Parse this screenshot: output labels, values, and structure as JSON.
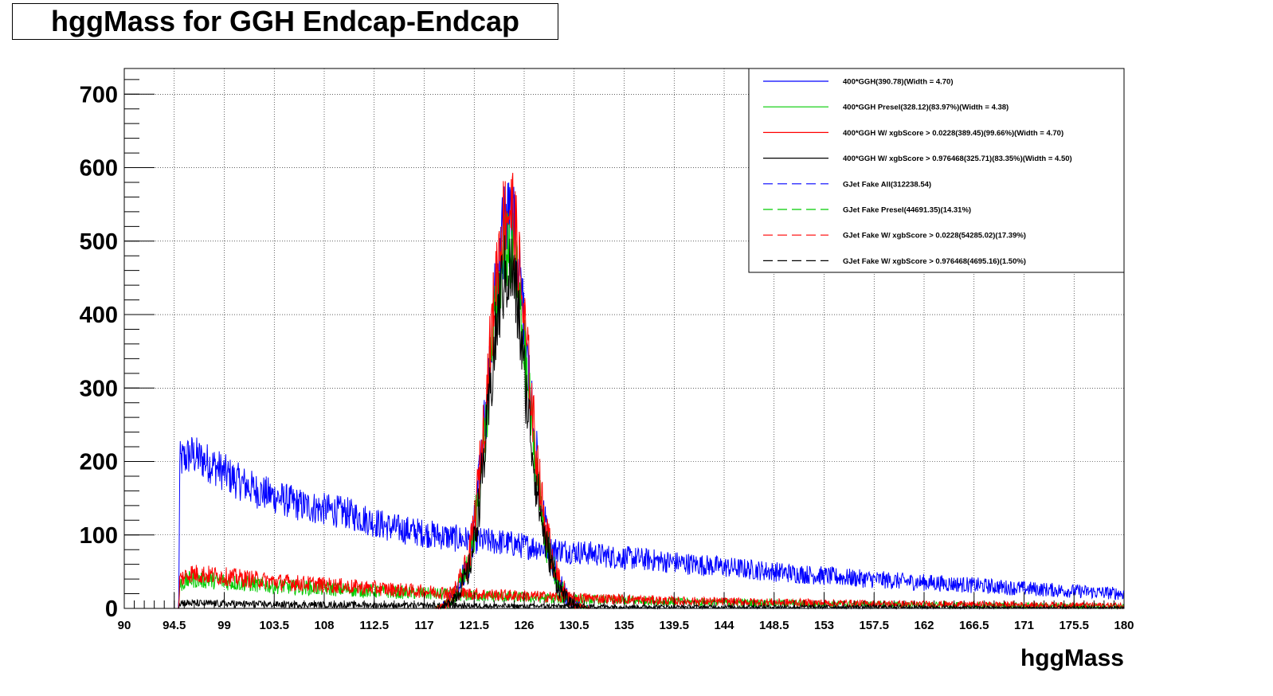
{
  "chart_data": {
    "type": "line",
    "title": "hggMass for GGH Endcap-Endcap",
    "xlabel": "hggMass",
    "ylabel": "",
    "xlim": [
      90,
      180
    ],
    "ylim": [
      0,
      735
    ],
    "grid": true,
    "legend_position": "top-right",
    "x_ticks": [
      "90",
      "94.5",
      "99",
      "103.5",
      "108",
      "112.5",
      "117",
      "121.5",
      "126",
      "130.5",
      "135",
      "139.5",
      "144",
      "148.5",
      "153",
      "157.5",
      "162",
      "166.5",
      "171",
      "175.5",
      "180"
    ],
    "y_ticks": [
      "0",
      "100",
      "200",
      "300",
      "400",
      "500",
      "600",
      "700"
    ],
    "x_tick_values": [
      90,
      94.5,
      99,
      103.5,
      108,
      112.5,
      117,
      121.5,
      126,
      130.5,
      135,
      139.5,
      144,
      148.5,
      153,
      157.5,
      162,
      166.5,
      171,
      175.5,
      180
    ],
    "y_tick_values": [
      0,
      100,
      200,
      300,
      400,
      500,
      600,
      700
    ],
    "series": [
      {
        "name": "400*GGH(390.78)(Width = 4.70)",
        "color": "#0000ff",
        "style": "solid",
        "x": [
          118,
          119,
          120,
          121,
          121.5,
          122,
          122.5,
          123,
          123.5,
          124,
          124.5,
          125,
          125.5,
          126,
          126.5,
          127,
          127.5,
          128,
          129,
          130,
          131,
          132
        ],
        "y": [
          0,
          5,
          25,
          60,
          110,
          180,
          260,
          350,
          440,
          500,
          525,
          520,
          460,
          380,
          300,
          220,
          150,
          100,
          40,
          12,
          3,
          0
        ]
      },
      {
        "name": "400*GGH Presel(328.12)(83.97%)(Width = 4.38)",
        "color": "#00cc00",
        "style": "solid",
        "x": [
          118,
          119,
          120,
          121,
          121.5,
          122,
          122.5,
          123,
          123.5,
          124,
          124.5,
          125,
          125.5,
          126,
          126.5,
          127,
          127.5,
          128,
          129,
          130,
          131,
          132
        ],
        "y": [
          0,
          5,
          25,
          60,
          105,
          170,
          240,
          330,
          410,
          470,
          495,
          480,
          430,
          350,
          280,
          200,
          140,
          90,
          35,
          10,
          3,
          0
        ]
      },
      {
        "name": "400*GGH W/ xgbScore > 0.0228(389.45)(99.66%)(Width = 4.70)",
        "color": "#ff0000",
        "style": "solid",
        "x": [
          118,
          119,
          120,
          121,
          121.5,
          122,
          122.5,
          123,
          123.5,
          124,
          124.5,
          125,
          125.5,
          126,
          126.5,
          127,
          127.5,
          128,
          129,
          130,
          131,
          132
        ],
        "y": [
          0,
          6,
          28,
          65,
          115,
          190,
          270,
          365,
          455,
          520,
          545,
          540,
          470,
          390,
          310,
          225,
          155,
          105,
          42,
          13,
          3,
          0
        ]
      },
      {
        "name": "400*GGH W/ xgbScore > 0.976468(325.71)(83.35%)(Width = 4.50)",
        "color": "#000000",
        "style": "solid",
        "x": [
          118,
          119,
          120,
          121,
          121.5,
          122,
          122.5,
          123,
          123.5,
          124,
          124.5,
          125,
          125.5,
          126,
          126.5,
          127,
          127.5,
          128,
          129,
          130,
          131,
          132
        ],
        "y": [
          0,
          4,
          20,
          50,
          90,
          150,
          220,
          300,
          380,
          440,
          460,
          455,
          400,
          320,
          250,
          180,
          125,
          85,
          32,
          9,
          2,
          0
        ]
      },
      {
        "name": "GJet Fake All(312238.54)",
        "color": "#0000ff",
        "style": "dashed",
        "x": [
          90,
          94.9,
          95,
          96,
          98,
          100,
          102,
          104,
          106,
          108,
          110,
          112,
          114,
          116,
          118,
          120,
          122,
          124,
          126,
          128,
          130,
          132,
          134,
          136,
          138,
          140,
          145,
          150,
          155,
          160,
          165,
          170,
          175,
          180
        ],
        "y": [
          0,
          0,
          200,
          210,
          195,
          175,
          160,
          150,
          140,
          135,
          130,
          120,
          110,
          105,
          100,
          95,
          92,
          90,
          85,
          82,
          78,
          75,
          70,
          68,
          65,
          62,
          55,
          48,
          42,
          37,
          33,
          28,
          24,
          20
        ]
      },
      {
        "name": "GJet Fake Presel(44691.35)(14.31%)",
        "color": "#00cc00",
        "style": "dashed",
        "x": [
          90,
          94.9,
          95,
          96,
          98,
          100,
          104,
          108,
          112,
          116,
          120,
          124,
          128,
          132,
          136,
          140,
          150,
          160,
          170,
          180
        ],
        "y": [
          0,
          0,
          32,
          40,
          38,
          35,
          30,
          27,
          24,
          21,
          18,
          16,
          14,
          12,
          11,
          9,
          7,
          5,
          4,
          3
        ]
      },
      {
        "name": "GJet Fake W/ xgbScore > 0.0228(54285.02)(17.39%)",
        "color": "#ff0000",
        "style": "dashed",
        "x": [
          90,
          94.9,
          95,
          96,
          98,
          100,
          104,
          108,
          112,
          116,
          120,
          124,
          128,
          132,
          136,
          140,
          150,
          160,
          170,
          180
        ],
        "y": [
          0,
          0,
          40,
          48,
          45,
          42,
          36,
          32,
          28,
          24,
          21,
          18,
          16,
          14,
          12,
          10,
          8,
          6,
          5,
          4
        ]
      },
      {
        "name": "GJet Fake W/ xgbScore > 0.976468(4695.16)(1.50%)",
        "color": "#000000",
        "style": "dashed",
        "x": [
          90,
          94.9,
          95,
          96,
          100,
          105,
          110,
          115,
          120,
          125,
          130,
          140,
          150,
          160,
          170,
          180
        ],
        "y": [
          0,
          0,
          8,
          7,
          6,
          5,
          5,
          4,
          4,
          3,
          3,
          2,
          2,
          2,
          1,
          1
        ]
      }
    ]
  }
}
